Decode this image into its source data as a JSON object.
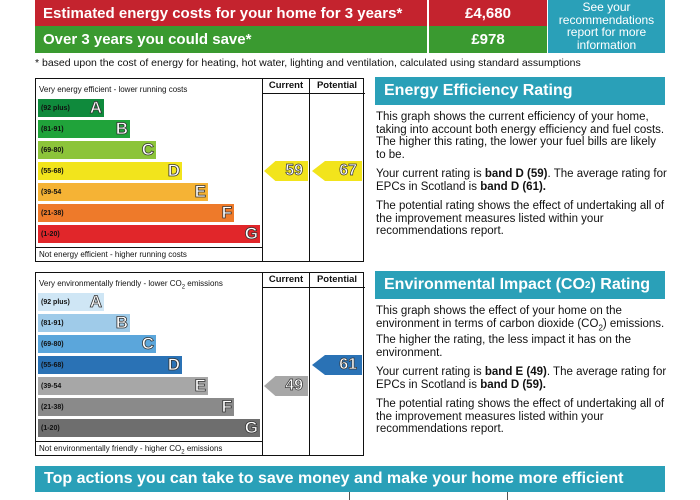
{
  "cost_table": {
    "estimated_label": "Estimated energy costs for your home for 3 years*",
    "estimated_value": "£4,680",
    "save_label": "Over 3 years you could save*",
    "save_value": "£978",
    "see_recommendations": "See your recommendations report for more information",
    "colors": {
      "red": "#c4232e",
      "green": "#3a9a30",
      "teal": "#2aa0b8"
    }
  },
  "footnote": "* based upon the cost of energy for heating, hot water, lighting and ventilation, calculated using standard assumptions",
  "energy_chart": {
    "col_current": "Current",
    "col_potential": "Potential",
    "top_caption": "Very energy efficient - lower running costs",
    "bottom_caption": "Not energy efficient - higher running costs",
    "bands": [
      {
        "range": "(92 plus)",
        "letter": "A",
        "color": "#0f8a3c"
      },
      {
        "range": "(81-91)",
        "letter": "B",
        "color": "#20a33a"
      },
      {
        "range": "(69-80)",
        "letter": "C",
        "color": "#8cc43a"
      },
      {
        "range": "(55-68)",
        "letter": "D",
        "color": "#f2e41c"
      },
      {
        "range": "(39-54",
        "letter": "E",
        "color": "#f5b335"
      },
      {
        "range": "(21-38)",
        "letter": "F",
        "color": "#ee7a2a"
      },
      {
        "range": "(1-20)",
        "letter": "G",
        "color": "#e1262a"
      }
    ],
    "current": {
      "value": "59",
      "band": "D",
      "color": "#f2e41c"
    },
    "potential": {
      "value": "67",
      "band": "D",
      "color": "#f2e41c"
    }
  },
  "environment_chart": {
    "col_current": "Current",
    "col_potential": "Potential",
    "top_caption": "Very environmentally friendly - lower CO",
    "top_caption_sub": "2",
    "top_caption_end": " emissions",
    "bottom_caption": "Not environmentally friendly - higher CO",
    "bottom_caption_sub": "2",
    "bottom_caption_end": " emissions",
    "bands": [
      {
        "range": "(92 plus)",
        "letter": "A",
        "color": "#cfe6f5"
      },
      {
        "range": "(81-91)",
        "letter": "B",
        "color": "#9fcbe9"
      },
      {
        "range": "(69-80)",
        "letter": "C",
        "color": "#5ba6db"
      },
      {
        "range": "(55-68)",
        "letter": "D",
        "color": "#2a72b5"
      },
      {
        "range": "(39-54",
        "letter": "E",
        "color": "#a7a7a7"
      },
      {
        "range": "(21-38)",
        "letter": "F",
        "color": "#8a8a8a"
      },
      {
        "range": "(1-20)",
        "letter": "G",
        "color": "#6e6e6e"
      }
    ],
    "current": {
      "value": "49",
      "band": "E",
      "color": "#a7a7a7"
    },
    "potential": {
      "value": "61",
      "band": "D",
      "color": "#2a72b5"
    }
  },
  "energy_section": {
    "title": "Energy Efficiency Rating",
    "p1": "This graph shows the current efficiency of your home, taking into account both energy efficiency and fuel costs. The higher this rating, the lower your fuel bills are likely to be.",
    "p2_pre": "Your current rating is ",
    "p2_bold1": "band D (59)",
    "p2_mid": ". The average rating for EPCs in Scotland is ",
    "p2_bold2": "band D (61).",
    "p3": "The potential rating shows the effect of undertaking all of the improvement measures listed within your recommendations report."
  },
  "environment_section": {
    "title_pre": "Environmental Impact (CO",
    "title_sub": "2",
    "title_post": ") Rating",
    "p1_pre": "This graph shows the effect of your home on the environment in terms of carbon dioxide (CO",
    "p1_sub": "2",
    "p1_post": ") emissions. The higher the rating, the less impact it has on the environment.",
    "p2_pre": "Your current rating is ",
    "p2_bold1": "band E (49)",
    "p2_mid": ". The average rating for EPCs in Scotland is ",
    "p2_bold2": "band D (59).",
    "p3": "The potential rating shows the effect of undertaking all of the improvement measures listed within your recommendations report."
  },
  "bottom_heading": "Top actions you can take to save money and make your home more efficient"
}
